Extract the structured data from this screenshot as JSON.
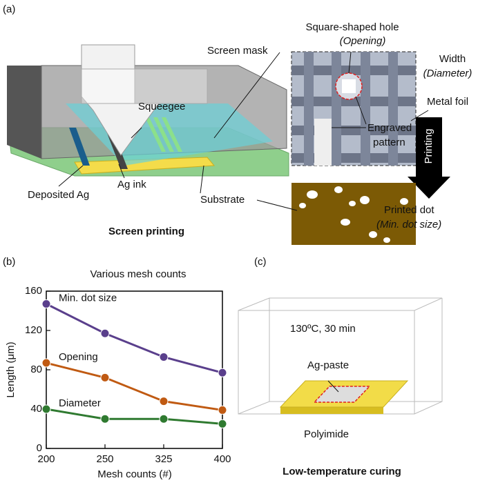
{
  "panel_a": {
    "label": "(a)",
    "caption": "Screen printing",
    "screen_mask": "Screen mask",
    "squeegee": "Squeegee",
    "deposited_ag": "Deposited Ag",
    "ag_ink": "Ag ink",
    "substrate": "Substrate",
    "hole_title": "Square-shaped hole",
    "hole_sub": "(Opening)",
    "width": "Width",
    "width_sub": "(Diameter)",
    "metal_foil": "Metal foil",
    "engraved": [
      "Engraved",
      "pattern"
    ],
    "printing": "Printing",
    "printed_dot": "Printed dot",
    "printed_dot_sub": "(Min. dot size)"
  },
  "chart_data": {
    "type": "line",
    "panel_label": "(b)",
    "title": "Various mesh counts",
    "x_label": "Mesh counts (#)",
    "y_label": "Length (μm)",
    "categories": [
      "200",
      "250",
      "325",
      "400"
    ],
    "series": [
      {
        "name": "Min. dot size",
        "color": "#5a3f8c",
        "values": [
          147,
          117,
          93,
          77
        ]
      },
      {
        "name": "Opening",
        "color": "#c05a12",
        "values": [
          87,
          72,
          48,
          39
        ]
      },
      {
        "name": "Diameter",
        "color": "#2f7a30",
        "values": [
          40,
          30,
          30,
          25
        ]
      }
    ],
    "ylim": [
      0,
      160
    ],
    "yticks": [
      0,
      40,
      80,
      120,
      160
    ]
  },
  "panel_c": {
    "label": "(c)",
    "caption": "Low-temperature curing",
    "condition": "130ºC, 30 min",
    "ag_paste": "Ag-paste",
    "polyimide": "Polyimide"
  }
}
